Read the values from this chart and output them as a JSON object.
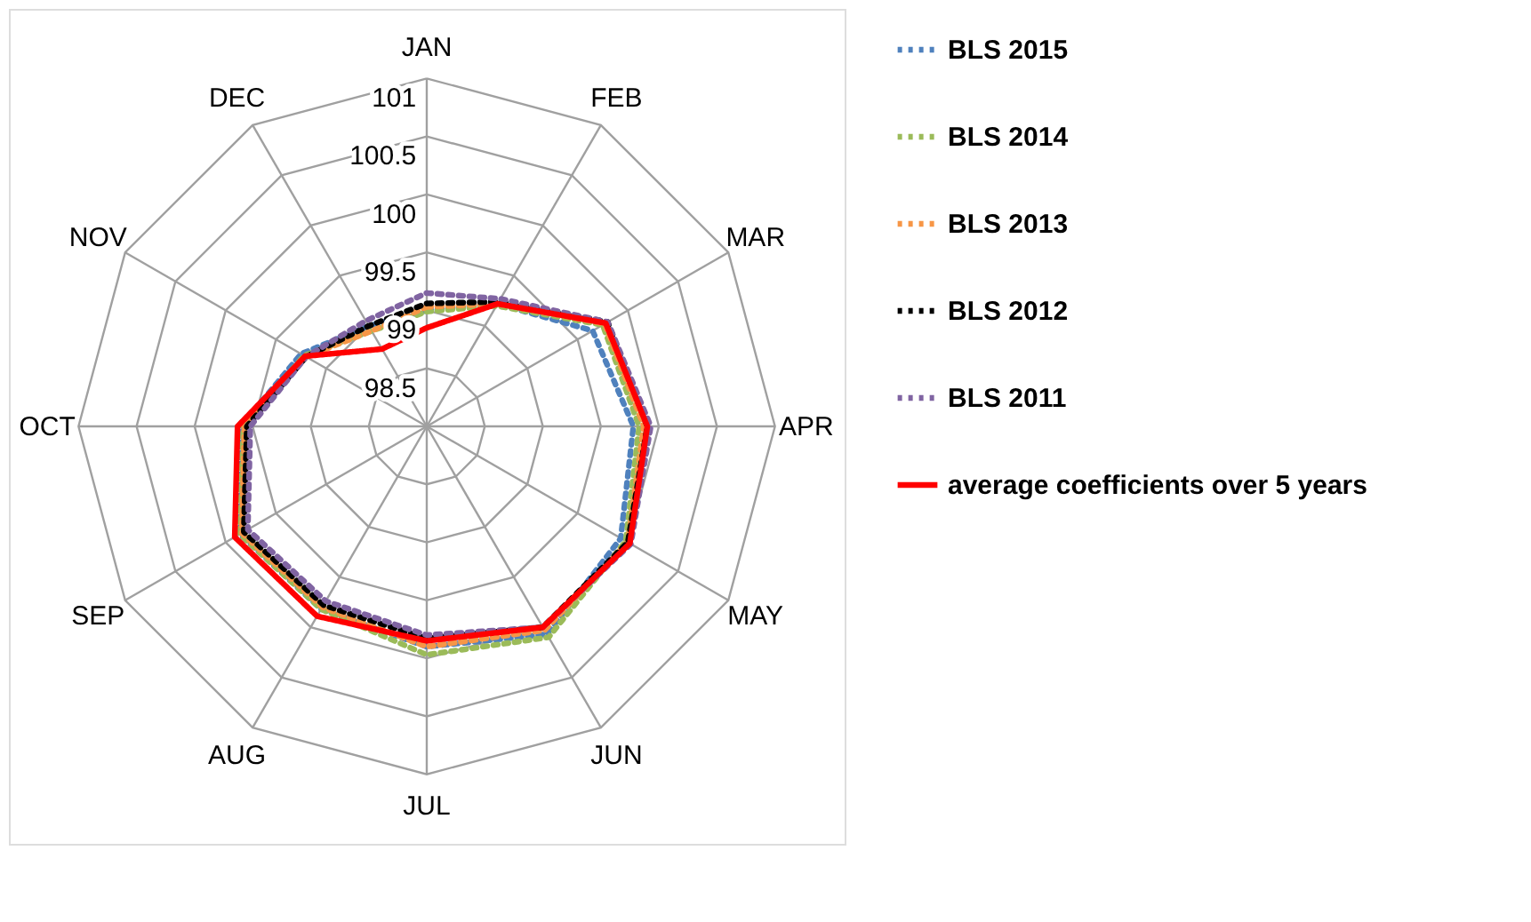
{
  "chart_data": {
    "type": "radar",
    "categories": [
      "JAN",
      "FEB",
      "MAR",
      "APR",
      "MAY",
      "JUN",
      "JUL",
      "AUG",
      "SEP",
      "OCT",
      "NOV",
      "DEC"
    ],
    "ylim": [
      98,
      101
    ],
    "yticks": [
      98.5,
      99,
      99.5,
      100,
      100.5,
      101
    ],
    "grid": true,
    "legend": "right",
    "marker": "none",
    "series": [
      {
        "name": "BLS 2015",
        "color": "#4f81bd",
        "line_style": "dotted",
        "values": [
          99.0,
          99.22,
          99.65,
          99.78,
          99.93,
          100.07,
          99.9,
          99.82,
          99.86,
          99.6,
          99.25,
          99.0
        ]
      },
      {
        "name": "BLS 2014",
        "color": "#9bbb59",
        "line_style": "dotted",
        "values": [
          98.99,
          99.2,
          99.75,
          99.83,
          99.98,
          100.1,
          99.97,
          99.82,
          99.86,
          99.58,
          99.22,
          98.95
        ]
      },
      {
        "name": "BLS 2013",
        "color": "#f79646",
        "line_style": "dotted",
        "values": [
          99.03,
          99.22,
          99.77,
          99.87,
          100.0,
          100.03,
          99.9,
          99.8,
          99.84,
          99.57,
          99.2,
          98.95
        ]
      },
      {
        "name": "BLS 2012",
        "color": "#000000",
        "line_style": "dotted",
        "values": [
          99.06,
          99.24,
          99.8,
          99.9,
          100.0,
          100.0,
          99.83,
          99.78,
          99.82,
          99.55,
          99.2,
          99.0
        ]
      },
      {
        "name": "BLS 2011",
        "color": "#8064a2",
        "line_style": "dotted",
        "values": [
          99.15,
          99.27,
          99.8,
          99.93,
          100.03,
          100.0,
          99.8,
          99.74,
          99.78,
          99.52,
          99.2,
          99.05
        ]
      },
      {
        "name": "average coefficients over 5 years",
        "color": "#ff0000",
        "line_style": "solid",
        "values": [
          98.85,
          99.22,
          99.78,
          99.9,
          100.02,
          100.0,
          99.85,
          99.89,
          99.91,
          99.63,
          99.21,
          98.77
        ]
      }
    ]
  }
}
